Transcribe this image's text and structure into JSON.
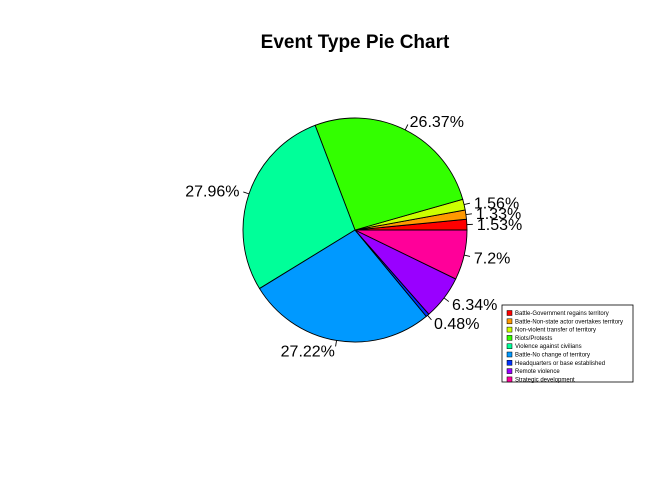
{
  "chart_data": {
    "type": "pie",
    "title": "Event Type Pie Chart",
    "start_angle_deg": 0,
    "direction": "counterclockwise",
    "legend_position": "bottom-right",
    "slices": [
      {
        "label": "Battle-Government regains territory",
        "value": 1.53,
        "display": "1.53%",
        "color": "#FF0000"
      },
      {
        "label": "Battle-Non-state actor overtakes territory",
        "value": 1.33,
        "display": "1.33%",
        "color": "#FF9900"
      },
      {
        "label": "Non-violent transfer of territory",
        "value": 1.56,
        "display": "1.56%",
        "color": "#CCFF00"
      },
      {
        "label": "Riots/Protests",
        "value": 26.37,
        "display": "26.37%",
        "color": "#33FF00"
      },
      {
        "label": "Violence against civilians",
        "value": 27.96,
        "display": "27.96%",
        "color": "#00FF99"
      },
      {
        "label": "Battle-No change of territory",
        "value": 27.22,
        "display": "27.22%",
        "color": "#0099FF"
      },
      {
        "label": "Headquarters or base established",
        "value": 0.48,
        "display": "0.48%",
        "color": "#0033FF"
      },
      {
        "label": "Remote violence",
        "value": 6.34,
        "display": "6.34%",
        "color": "#9900FF"
      },
      {
        "label": "Strategic development",
        "value": 7.2,
        "display": "7.2%",
        "color": "#FF0099"
      }
    ]
  }
}
